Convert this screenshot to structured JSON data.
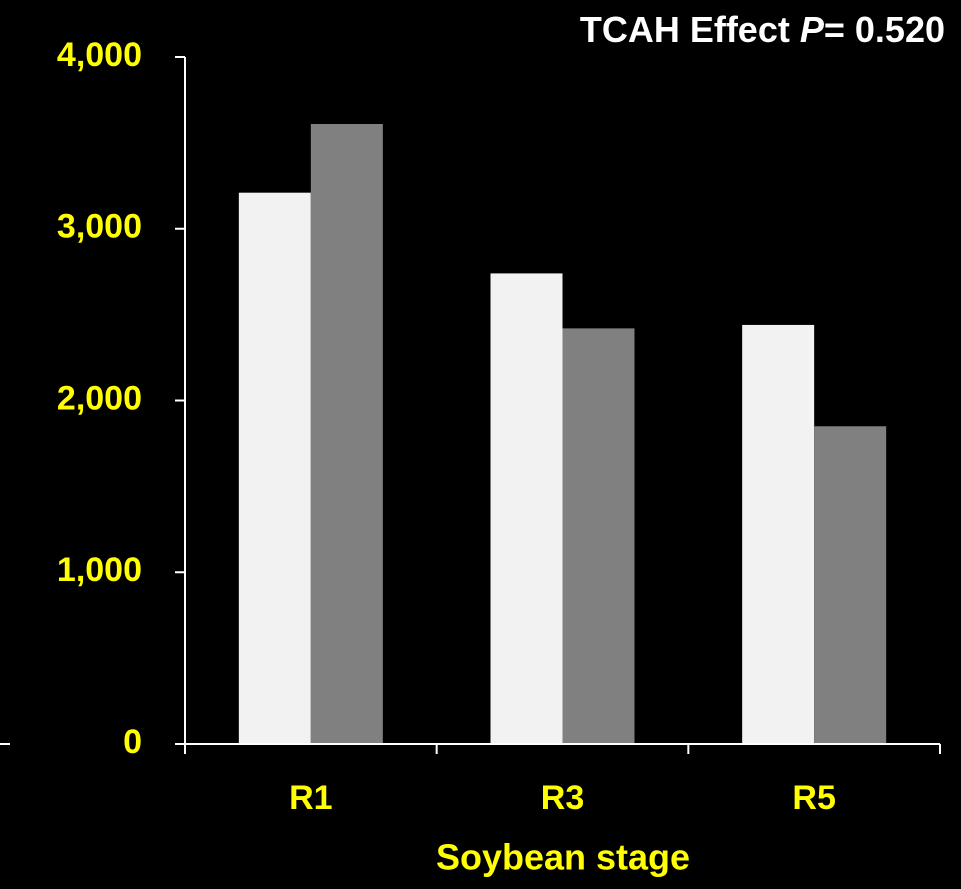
{
  "chart_data": {
    "type": "bar",
    "title": {
      "text": "TCAH Effect",
      "italic": "P",
      "rest": "= 0.520"
    },
    "x_label": "Soybean stage",
    "categories": [
      "R1",
      "R3",
      "R5"
    ],
    "series": [
      {
        "color": "#f2f2f2",
        "values": [
          3210,
          2740,
          2440
        ]
      },
      {
        "color": "#808080",
        "values": [
          3610,
          2420,
          1850
        ]
      }
    ],
    "ylim": [
      0,
      4000
    ],
    "yticks": [
      {
        "value": 0,
        "label": "0"
      },
      {
        "value": 1000,
        "label": "1,000"
      },
      {
        "value": 2000,
        "label": "2,000"
      },
      {
        "value": 3000,
        "label": "3,000"
      },
      {
        "value": 4000,
        "label": "4,000"
      }
    ]
  }
}
